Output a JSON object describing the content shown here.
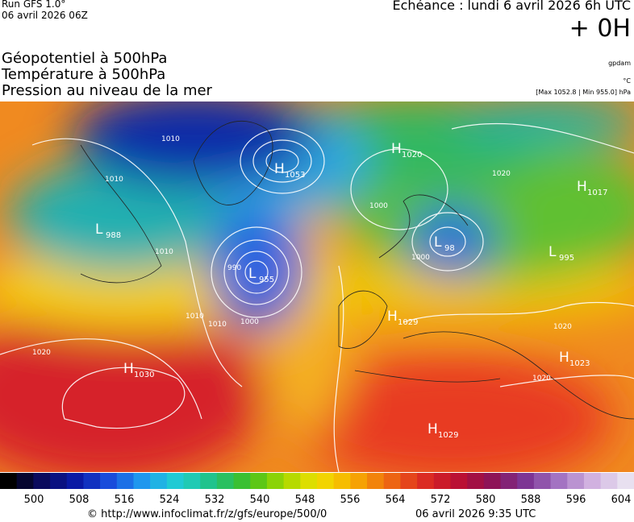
{
  "header": {
    "run": "Run GFS 1.0°",
    "date": "06 avril 2026 06Z",
    "echeance": "Echéance : lundi 6 avril 2026 6h UTC",
    "offset": "+ 0H"
  },
  "fields": [
    "Géopotentiel à 500hPa",
    "Température à 500hPa",
    "Pression au niveau de la mer"
  ],
  "units": [
    "gpdam",
    "°C",
    "[Max 1052.8 | Min 955.0] hPa"
  ],
  "centers": [
    {
      "letter": "H",
      "value": "1053"
    },
    {
      "letter": "L",
      "value": "955"
    },
    {
      "letter": "L",
      "value": "988"
    },
    {
      "letter": "H",
      "value": "1020"
    },
    {
      "letter": "H",
      "value": "1017"
    },
    {
      "letter": "L",
      "value": "995"
    },
    {
      "letter": "L",
      "value": "98"
    },
    {
      "letter": "H",
      "value": "1029"
    },
    {
      "letter": "H",
      "value": "1030"
    },
    {
      "letter": "H",
      "value": "1023"
    },
    {
      "letter": "H",
      "value": "1029"
    }
  ],
  "isobar_labels": [
    "1010",
    "1010",
    "1010",
    "990",
    "1000",
    "1010",
    "1020",
    "1000",
    "1000",
    "1020",
    "1020",
    "1020",
    "1010"
  ],
  "colorbar_ticks": [
    500,
    508,
    516,
    524,
    532,
    540,
    548,
    556,
    564,
    572,
    580,
    588,
    596,
    604
  ],
  "footer": {
    "url": "© http://www.infoclimat.fr/z/gfs/europe/500/0",
    "time": "06 avril 2026  9:35 UTC"
  }
}
